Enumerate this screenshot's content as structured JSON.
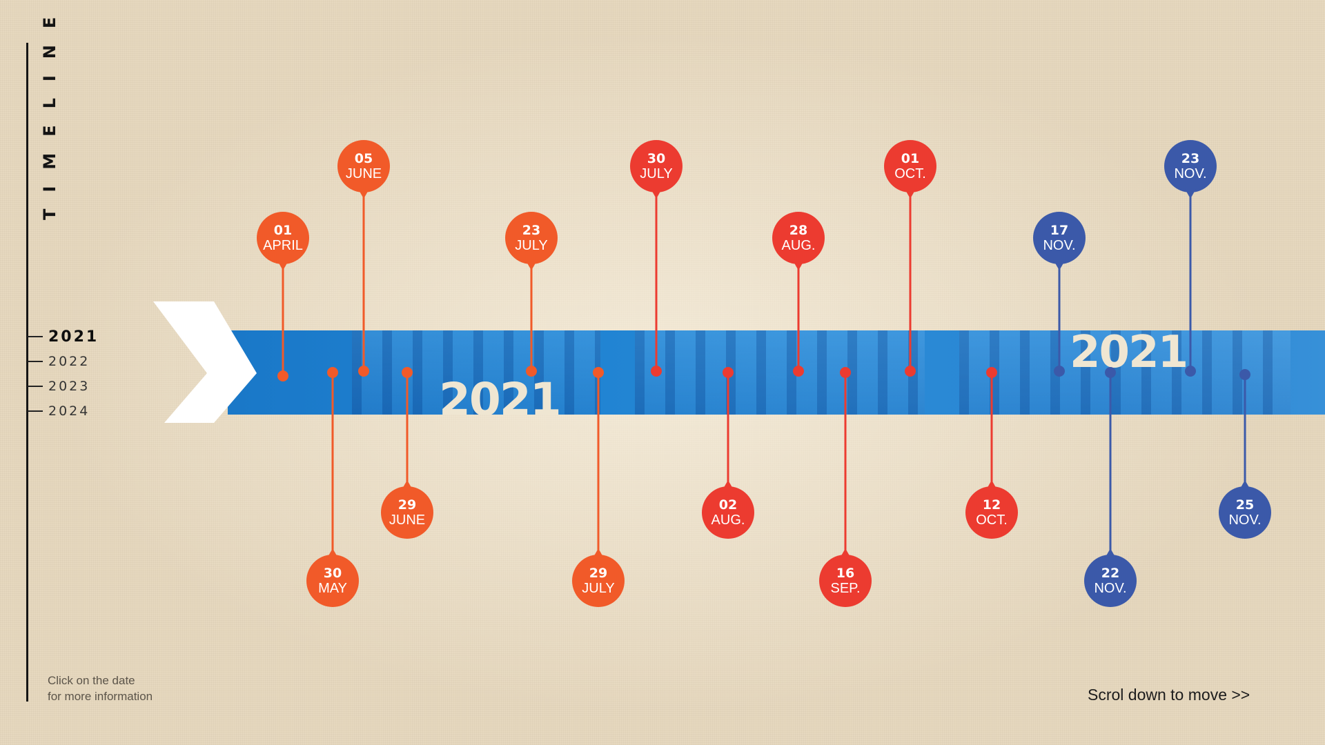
{
  "sidebar": {
    "title": "TIMELINE",
    "years": [
      "2021",
      "2022",
      "2023",
      "2024"
    ],
    "active_year": "2021"
  },
  "band": {
    "year_labels": [
      "2021",
      "2021"
    ]
  },
  "hint": {
    "line1": "Click on the date",
    "line2": "for more information"
  },
  "scroll_hint": "Scrol down to move >>",
  "colors": {
    "orange": "#f15a29",
    "red": "#ec3b30",
    "blue": "#3b59a9",
    "band": "#1f83d2"
  },
  "events": [
    {
      "day": "01",
      "month": "APRIL",
      "color": "orange"
    },
    {
      "day": "30",
      "month": "MAY",
      "color": "orange"
    },
    {
      "day": "05",
      "month": "JUNE",
      "color": "orange"
    },
    {
      "day": "29",
      "month": "JUNE",
      "color": "orange"
    },
    {
      "day": "23",
      "month": "JULY",
      "color": "orange"
    },
    {
      "day": "29",
      "month": "JULY",
      "color": "orange"
    },
    {
      "day": "30",
      "month": "JULY",
      "color": "red"
    },
    {
      "day": "02",
      "month": "AUG.",
      "color": "red"
    },
    {
      "day": "28",
      "month": "AUG.",
      "color": "red"
    },
    {
      "day": "16",
      "month": "SEP.",
      "color": "red"
    },
    {
      "day": "01",
      "month": "OCT.",
      "color": "red"
    },
    {
      "day": "12",
      "month": "OCT.",
      "color": "red"
    },
    {
      "day": "17",
      "month": "NOV.",
      "color": "blue"
    },
    {
      "day": "22",
      "month": "NOV.",
      "color": "blue"
    },
    {
      "day": "23",
      "month": "NOV.",
      "color": "blue"
    },
    {
      "day": "25",
      "month": "NOV.",
      "color": "blue"
    }
  ]
}
